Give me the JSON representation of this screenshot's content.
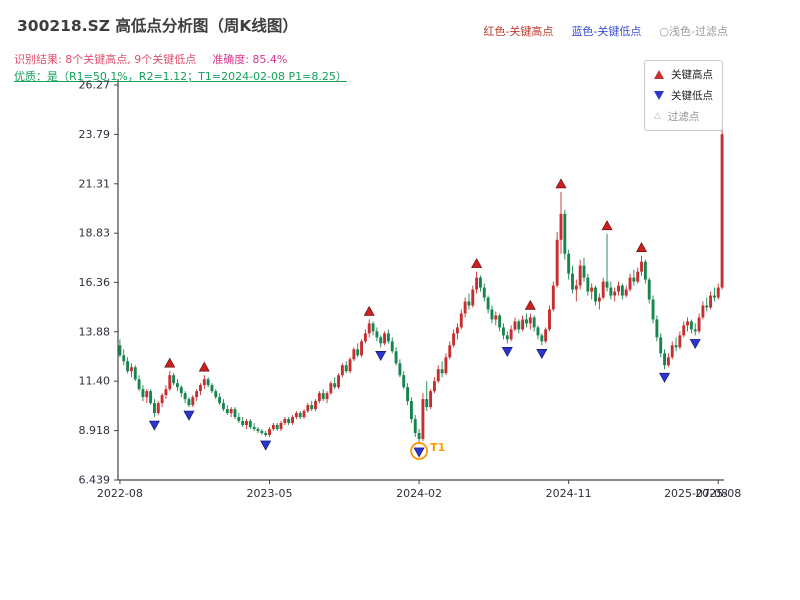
{
  "header": {
    "title": "300218.SZ 高低点分析图（周K线图）",
    "result_line": "识别结果: 8个关键高点, 9个关键低点",
    "accuracy": "准确度: 85.4%",
    "quality_line": "优质：是（R1=50.1%，R2=1.12；T1=2024-02-08 P1=8.25）",
    "legend_high": "红色-关键高点",
    "legend_low": "蓝色-关键低点",
    "legend_filtered": "○浅色-过滤点"
  },
  "legend_box": {
    "items": [
      {
        "label": "关键高点",
        "marker": "up-triangle",
        "color": "#c62f2f"
      },
      {
        "label": "关键低点",
        "marker": "down-triangle",
        "color": "#2c36cc"
      },
      {
        "label": "过滤点",
        "marker": "hollow-triangle",
        "color": "#b5b5b5",
        "glyph": "△"
      }
    ]
  },
  "chart_data": {
    "type": "candlestick",
    "title": "300218.SZ 高低点分析图（周K线图）",
    "ylim": [
      6.439,
      26.27
    ],
    "y_ticks": [
      {
        "label": "26.27",
        "value": 26.27
      },
      {
        "label": "23.79",
        "value": 23.79
      },
      {
        "label": "21.31",
        "value": 21.31
      },
      {
        "label": "18.83",
        "value": 18.83
      },
      {
        "label": "16.36",
        "value": 16.36
      },
      {
        "label": "13.88",
        "value": 13.88
      },
      {
        "label": "11.40",
        "value": 11.4
      },
      {
        "label": "8.918",
        "value": 8.918
      },
      {
        "label": "6.439",
        "value": 6.439
      }
    ],
    "x_ticks": [
      {
        "label": "2022-08",
        "index": 0
      },
      {
        "label": "2023-05",
        "index": 39
      },
      {
        "label": "2024-02",
        "index": 78
      },
      {
        "label": "2024-11",
        "index": 117
      },
      {
        "label": "2025-08",
        "index": 156
      }
    ],
    "x_end_label": "2025-07-08",
    "candles": [
      [
        13.2,
        13.5,
        12.6,
        12.7
      ],
      [
        12.7,
        13.0,
        12.2,
        12.4
      ],
      [
        12.4,
        12.6,
        11.8,
        11.9
      ],
      [
        11.9,
        12.3,
        11.6,
        12.1
      ],
      [
        12.1,
        12.2,
        11.4,
        11.5
      ],
      [
        11.5,
        11.7,
        10.9,
        11.0
      ],
      [
        11.0,
        11.2,
        10.4,
        10.6
      ],
      [
        10.6,
        11.0,
        10.3,
        10.9
      ],
      [
        10.9,
        11.0,
        10.2,
        10.3
      ],
      [
        10.3,
        10.5,
        9.6,
        9.8
      ],
      [
        9.8,
        10.4,
        9.7,
        10.3
      ],
      [
        10.3,
        10.8,
        10.1,
        10.7
      ],
      [
        10.7,
        11.2,
        10.5,
        11.0
      ],
      [
        11.0,
        11.9,
        10.9,
        11.7
      ],
      [
        11.7,
        11.8,
        11.2,
        11.3
      ],
      [
        11.3,
        11.5,
        10.9,
        11.1
      ],
      [
        11.1,
        11.2,
        10.6,
        10.8
      ],
      [
        10.8,
        10.9,
        10.3,
        10.5
      ],
      [
        10.5,
        10.6,
        10.1,
        10.2
      ],
      [
        10.2,
        10.7,
        10.1,
        10.6
      ],
      [
        10.6,
        11.0,
        10.4,
        10.9
      ],
      [
        10.9,
        11.3,
        10.7,
        11.2
      ],
      [
        11.2,
        11.7,
        11.0,
        11.5
      ],
      [
        11.5,
        11.6,
        11.1,
        11.2
      ],
      [
        11.2,
        11.3,
        10.8,
        10.9
      ],
      [
        10.9,
        11.0,
        10.5,
        10.6
      ],
      [
        10.6,
        10.8,
        10.2,
        10.3
      ],
      [
        10.3,
        10.5,
        9.9,
        10.0
      ],
      [
        10.0,
        10.2,
        9.7,
        9.8
      ],
      [
        9.8,
        10.1,
        9.6,
        10.0
      ],
      [
        10.0,
        10.1,
        9.5,
        9.6
      ],
      [
        9.6,
        9.8,
        9.3,
        9.4
      ],
      [
        9.4,
        9.6,
        9.1,
        9.2
      ],
      [
        9.2,
        9.5,
        9.0,
        9.4
      ],
      [
        9.4,
        9.5,
        9.0,
        9.1
      ],
      [
        9.1,
        9.3,
        8.9,
        9.0
      ],
      [
        9.0,
        9.1,
        8.8,
        8.9
      ],
      [
        8.9,
        9.0,
        8.7,
        8.8
      ],
      [
        8.8,
        8.9,
        8.6,
        8.7
      ],
      [
        8.7,
        9.1,
        8.6,
        9.0
      ],
      [
        9.0,
        9.3,
        8.9,
        9.2
      ],
      [
        9.2,
        9.3,
        8.9,
        9.0
      ],
      [
        9.0,
        9.4,
        8.9,
        9.3
      ],
      [
        9.3,
        9.6,
        9.2,
        9.5
      ],
      [
        9.5,
        9.6,
        9.2,
        9.3
      ],
      [
        9.3,
        9.7,
        9.2,
        9.6
      ],
      [
        9.6,
        9.9,
        9.5,
        9.8
      ],
      [
        9.8,
        9.9,
        9.5,
        9.6
      ],
      [
        9.6,
        10.0,
        9.5,
        9.9
      ],
      [
        9.9,
        10.3,
        9.8,
        10.2
      ],
      [
        10.2,
        10.4,
        9.9,
        10.0
      ],
      [
        10.0,
        10.5,
        9.9,
        10.4
      ],
      [
        10.4,
        10.9,
        10.3,
        10.8
      ],
      [
        10.8,
        11.0,
        10.4,
        10.5
      ],
      [
        10.5,
        10.9,
        10.3,
        10.8
      ],
      [
        10.8,
        11.4,
        10.7,
        11.3
      ],
      [
        11.3,
        11.6,
        11.0,
        11.1
      ],
      [
        11.1,
        11.8,
        11.0,
        11.7
      ],
      [
        11.7,
        12.3,
        11.6,
        12.2
      ],
      [
        12.2,
        12.4,
        11.8,
        11.9
      ],
      [
        11.9,
        12.6,
        11.8,
        12.5
      ],
      [
        12.5,
        13.1,
        12.4,
        13.0
      ],
      [
        13.0,
        13.3,
        12.6,
        12.7
      ],
      [
        12.7,
        13.5,
        12.6,
        13.4
      ],
      [
        13.4,
        14.0,
        13.3,
        13.8
      ],
      [
        13.8,
        14.5,
        13.6,
        14.3
      ],
      [
        14.3,
        14.4,
        13.7,
        13.9
      ],
      [
        13.9,
        14.1,
        13.4,
        13.6
      ],
      [
        13.6,
        13.7,
        13.1,
        13.3
      ],
      [
        13.3,
        13.9,
        13.2,
        13.8
      ],
      [
        13.8,
        14.0,
        13.3,
        13.4
      ],
      [
        13.4,
        13.6,
        12.8,
        12.9
      ],
      [
        12.9,
        13.1,
        12.2,
        12.3
      ],
      [
        12.3,
        12.5,
        11.6,
        11.7
      ],
      [
        11.7,
        11.9,
        11.0,
        11.1
      ],
      [
        11.1,
        11.3,
        10.2,
        10.4
      ],
      [
        10.4,
        10.6,
        9.3,
        9.5
      ],
      [
        9.5,
        9.7,
        8.6,
        8.8
      ],
      [
        8.8,
        9.0,
        8.25,
        8.5
      ],
      [
        8.5,
        10.8,
        8.4,
        10.5
      ],
      [
        10.5,
        11.4,
        9.9,
        10.1
      ],
      [
        10.1,
        11.0,
        10.0,
        10.9
      ],
      [
        10.9,
        11.6,
        10.8,
        11.4
      ],
      [
        11.4,
        12.2,
        11.3,
        12.0
      ],
      [
        12.0,
        12.4,
        11.6,
        11.8
      ],
      [
        11.8,
        12.8,
        11.7,
        12.6
      ],
      [
        12.6,
        13.4,
        12.5,
        13.2
      ],
      [
        13.2,
        14.0,
        13.1,
        13.8
      ],
      [
        13.8,
        14.3,
        13.5,
        14.1
      ],
      [
        14.1,
        15.0,
        14.0,
        14.8
      ],
      [
        14.8,
        15.6,
        14.6,
        15.4
      ],
      [
        15.4,
        15.8,
        15.0,
        15.2
      ],
      [
        15.2,
        16.2,
        15.1,
        16.0
      ],
      [
        16.0,
        16.9,
        15.8,
        16.6
      ],
      [
        16.6,
        16.7,
        15.9,
        16.1
      ],
      [
        16.1,
        16.3,
        15.4,
        15.6
      ],
      [
        15.6,
        15.7,
        14.8,
        15.0
      ],
      [
        15.0,
        15.2,
        14.3,
        14.5
      ],
      [
        14.5,
        14.9,
        14.2,
        14.7
      ],
      [
        14.7,
        14.8,
        13.9,
        14.1
      ],
      [
        14.1,
        14.3,
        13.5,
        13.7
      ],
      [
        13.7,
        13.9,
        13.3,
        13.5
      ],
      [
        13.5,
        14.2,
        13.4,
        14.0
      ],
      [
        14.0,
        14.6,
        13.9,
        14.4
      ],
      [
        14.4,
        14.5,
        13.8,
        14.0
      ],
      [
        14.0,
        14.7,
        13.9,
        14.5
      ],
      [
        14.5,
        14.8,
        14.1,
        14.3
      ],
      [
        14.3,
        14.8,
        14.0,
        14.6
      ],
      [
        14.6,
        14.7,
        13.9,
        14.1
      ],
      [
        14.1,
        14.2,
        13.5,
        13.7
      ],
      [
        13.7,
        13.8,
        13.2,
        13.4
      ],
      [
        13.4,
        14.1,
        13.3,
        14.0
      ],
      [
        14.0,
        15.2,
        13.9,
        15.0
      ],
      [
        15.0,
        16.4,
        14.9,
        16.2
      ],
      [
        16.2,
        18.9,
        16.1,
        18.5
      ],
      [
        18.5,
        20.9,
        17.8,
        19.8
      ],
      [
        19.8,
        20.0,
        17.5,
        17.8
      ],
      [
        17.8,
        18.0,
        16.5,
        16.8
      ],
      [
        16.8,
        17.2,
        15.8,
        16.0
      ],
      [
        16.0,
        16.5,
        15.4,
        16.2
      ],
      [
        16.2,
        17.5,
        16.0,
        17.2
      ],
      [
        17.2,
        17.6,
        16.4,
        16.6
      ],
      [
        16.6,
        16.8,
        15.7,
        15.9
      ],
      [
        15.9,
        16.3,
        15.5,
        16.1
      ],
      [
        16.1,
        16.2,
        15.2,
        15.4
      ],
      [
        15.4,
        15.8,
        15.0,
        15.6
      ],
      [
        15.6,
        16.6,
        15.5,
        16.4
      ],
      [
        16.4,
        18.8,
        15.9,
        16.1
      ],
      [
        16.1,
        16.4,
        15.5,
        15.7
      ],
      [
        15.7,
        16.1,
        15.4,
        15.9
      ],
      [
        15.9,
        16.4,
        15.7,
        16.2
      ],
      [
        16.2,
        16.3,
        15.5,
        15.7
      ],
      [
        15.7,
        16.2,
        15.6,
        16.0
      ],
      [
        16.0,
        16.8,
        15.9,
        16.6
      ],
      [
        16.6,
        17.0,
        16.2,
        16.4
      ],
      [
        16.4,
        17.1,
        16.3,
        16.9
      ],
      [
        16.9,
        17.7,
        16.7,
        17.4
      ],
      [
        17.4,
        17.5,
        16.3,
        16.5
      ],
      [
        16.5,
        16.6,
        15.3,
        15.5
      ],
      [
        15.5,
        15.7,
        14.3,
        14.5
      ],
      [
        14.5,
        14.7,
        13.4,
        13.6
      ],
      [
        13.6,
        13.8,
        12.6,
        12.8
      ],
      [
        12.8,
        13.0,
        12.0,
        12.2
      ],
      [
        12.2,
        12.8,
        12.1,
        12.6
      ],
      [
        12.6,
        13.4,
        12.5,
        13.2
      ],
      [
        13.2,
        13.6,
        12.9,
        13.1
      ],
      [
        13.1,
        13.9,
        13.0,
        13.7
      ],
      [
        13.7,
        14.4,
        13.6,
        14.2
      ],
      [
        14.2,
        14.6,
        13.9,
        14.4
      ],
      [
        14.4,
        14.5,
        13.8,
        14.0
      ],
      [
        14.0,
        14.3,
        13.7,
        13.9
      ],
      [
        13.9,
        14.8,
        13.8,
        14.6
      ],
      [
        14.6,
        15.4,
        14.5,
        15.2
      ],
      [
        15.2,
        15.6,
        14.9,
        15.1
      ],
      [
        15.1,
        15.9,
        15.0,
        15.7
      ],
      [
        15.7,
        16.1,
        15.4,
        15.6
      ],
      [
        15.6,
        16.3,
        15.5,
        16.1
      ],
      [
        16.1,
        24.3,
        16.0,
        23.8
      ]
    ],
    "key_highs": [
      {
        "index": 13,
        "price": 11.9
      },
      {
        "index": 22,
        "price": 11.7
      },
      {
        "index": 65,
        "price": 14.5
      },
      {
        "index": 93,
        "price": 16.9
      },
      {
        "index": 107,
        "price": 14.8
      },
      {
        "index": 115,
        "price": 20.9
      },
      {
        "index": 127,
        "price": 18.8
      },
      {
        "index": 136,
        "price": 17.7
      }
    ],
    "key_lows": [
      {
        "index": 9,
        "price": 9.6
      },
      {
        "index": 18,
        "price": 10.1
      },
      {
        "index": 38,
        "price": 8.6
      },
      {
        "index": 68,
        "price": 13.1
      },
      {
        "index": 78,
        "price": 8.25
      },
      {
        "index": 101,
        "price": 13.3
      },
      {
        "index": 110,
        "price": 13.2
      },
      {
        "index": 142,
        "price": 12.0
      },
      {
        "index": 150,
        "price": 13.7
      }
    ],
    "filtered_points": [],
    "annotation": {
      "label": "T1",
      "index": 78,
      "price": 8.25
    },
    "recognition": {
      "key_high_count": 8,
      "key_low_count": 9,
      "accuracy": "85.4%",
      "premium": "是",
      "R1": "50.1%",
      "R2": 1.12,
      "T1": "2024-02-08",
      "P1": 8.25
    },
    "colors": {
      "up": "#c62f2f",
      "down": "#178550",
      "key_high": "#cc1f1f",
      "key_low": "#2c36cc",
      "filtered": "#b5b5b5",
      "annotation": "#ff9800",
      "axis": "#444444",
      "tick_label": "#2d2d3d"
    },
    "legend_position": "top-right",
    "grid": false
  }
}
